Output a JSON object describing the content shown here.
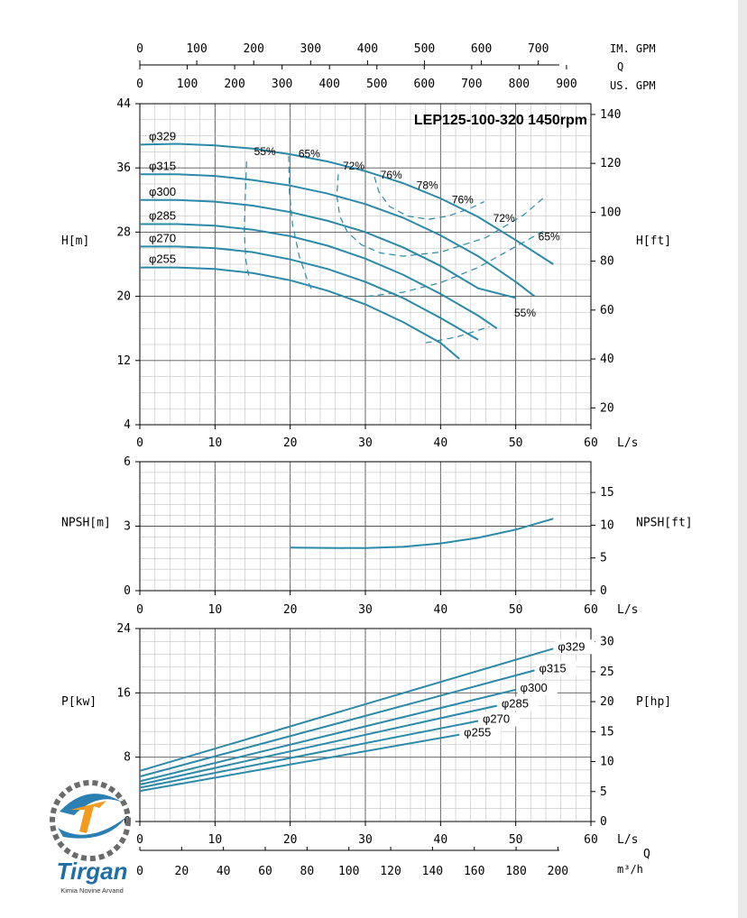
{
  "title": "LEP125-100-320 1450rpm",
  "top_axes": {
    "im_gpm": {
      "label": "IM. GPM",
      "ticks": [
        0,
        100,
        200,
        300,
        400,
        500,
        600,
        700
      ]
    },
    "q_label": "Q",
    "us_gpm": {
      "label": "US. GPM",
      "ticks": [
        0,
        100,
        200,
        300,
        400,
        500,
        600,
        700,
        800,
        900
      ]
    }
  },
  "logo": {
    "brand": "Tirgan",
    "tagline": "Kimia Novine Arvand",
    "colors": [
      "#2b7fb3",
      "#f39a1f",
      "#e84e1b"
    ]
  },
  "colors": {
    "curve": "#2a8aa8",
    "grid": "#999999",
    "axis": "#000000",
    "background": "#ffffff",
    "page": "#e9e9e9"
  },
  "chart_data": [
    {
      "type": "line",
      "title": "LEP125-100-320 1450rpm",
      "xlabel": "L/s",
      "ylabel": "H[m]",
      "y2label": "H[ft]",
      "xlim": [
        0,
        60
      ],
      "ylim": [
        4,
        44
      ],
      "y2lim": [
        13.1,
        144.4
      ],
      "xticks": [
        0,
        10,
        20,
        30,
        40,
        50,
        60
      ],
      "yticks": [
        4,
        12,
        20,
        28,
        36,
        44
      ],
      "y2ticks": [
        20,
        40,
        60,
        80,
        100,
        120,
        140
      ],
      "grid": true,
      "series": [
        {
          "name": "φ329",
          "x": [
            0,
            5,
            10,
            15,
            20,
            25,
            30,
            35,
            40,
            45,
            50,
            55
          ],
          "y": [
            38.9,
            39.0,
            38.8,
            38.4,
            37.7,
            36.8,
            35.6,
            34.1,
            32.2,
            29.9,
            27.0,
            24.0
          ]
        },
        {
          "name": "φ315",
          "x": [
            0,
            5,
            10,
            15,
            20,
            25,
            30,
            35,
            40,
            45,
            50,
            52.5
          ],
          "y": [
            35.2,
            35.2,
            35.0,
            34.5,
            33.8,
            32.8,
            31.5,
            29.8,
            27.6,
            25.0,
            21.8,
            20.0
          ]
        },
        {
          "name": "φ300",
          "x": [
            0,
            5,
            10,
            15,
            20,
            25,
            30,
            35,
            40,
            45,
            50
          ],
          "y": [
            32.0,
            32.0,
            31.8,
            31.3,
            30.5,
            29.4,
            28.0,
            26.1,
            23.8,
            21.0,
            19.8
          ]
        },
        {
          "name": "φ285",
          "x": [
            0,
            5,
            10,
            15,
            20,
            25,
            30,
            35,
            40,
            45,
            47.5
          ],
          "y": [
            29.0,
            29.0,
            28.8,
            28.3,
            27.5,
            26.3,
            24.7,
            22.7,
            20.3,
            17.6,
            16.0
          ]
        },
        {
          "name": "φ270",
          "x": [
            0,
            5,
            10,
            15,
            20,
            25,
            30,
            35,
            40,
            45
          ],
          "y": [
            26.2,
            26.2,
            26.0,
            25.5,
            24.6,
            23.4,
            21.8,
            19.8,
            17.3,
            14.6
          ]
        },
        {
          "name": "φ255",
          "x": [
            0,
            5,
            10,
            15,
            20,
            25,
            30,
            35,
            40,
            42.5
          ],
          "y": [
            23.6,
            23.6,
            23.4,
            22.9,
            22.0,
            20.7,
            19.0,
            16.8,
            14.2,
            12.2
          ]
        }
      ],
      "efficiency": {
        "labels": [
          "55%",
          "65%",
          "72%",
          "76%",
          "78%",
          "76%",
          "72%",
          "65%",
          "55%"
        ],
        "contours": [
          {
            "x": [
              14.2,
              14.0,
              13.9,
              14.1,
              14.5
            ],
            "y": [
              36.8,
              32,
              28,
              24.5,
              22.5
            ]
          },
          {
            "x": [
              19.8,
              19.9,
              20.3,
              21.2,
              22.3,
              23
            ],
            "y": [
              37.5,
              33,
              29,
              25,
              22,
              20.5
            ]
          },
          {
            "x": [
              26.4,
              26.2,
              26.6,
              27.6,
              29.5,
              32,
              35,
              40,
              46,
              51,
              54
            ],
            "y": [
              35.2,
              32.5,
              30,
              28,
              26.4,
              25.4,
              25,
              25.5,
              27.3,
              30.1,
              32.5
            ]
          },
          {
            "x": [
              31.2,
              31.8,
              33.2,
              35.6,
              38.4,
              41,
              43.8,
              45.8
            ],
            "y": [
              34.9,
              33,
              31.2,
              30,
              29.6,
              30,
              30.9,
              31.8
            ]
          },
          {
            "x": [
              30.2,
              35,
              40,
              45,
              50,
              53.6
            ],
            "y": [
              20.0,
              20.5,
              21.7,
              23.6,
              26.2,
              28.1
            ]
          },
          {
            "x": [
              38,
              42,
              46.5
            ],
            "y": [
              14.2,
              14.9,
              16.2
            ]
          }
        ],
        "label_positions_data": [
          [
            15.2,
            37.6
          ],
          [
            21.1,
            37.3
          ],
          [
            27.0,
            35.8
          ],
          [
            32.0,
            34.7
          ],
          [
            36.8,
            33.4
          ],
          [
            41.5,
            31.6
          ],
          [
            47.0,
            29.3
          ],
          [
            53.0,
            27.0
          ],
          [
            49.8,
            17.5
          ]
        ]
      },
      "curve_labels": [
        "φ329",
        "φ315",
        "φ300",
        "φ285",
        "φ270",
        "φ255"
      ]
    },
    {
      "type": "line",
      "xlabel": "L/s",
      "ylabel": "NPSH[m]",
      "y2label": "NPSH[ft]",
      "xlim": [
        0,
        60
      ],
      "ylim": [
        0,
        6
      ],
      "y2lim": [
        0,
        19.7
      ],
      "xticks": [
        0,
        10,
        20,
        30,
        40,
        50,
        60
      ],
      "yticks": [
        0,
        3,
        6
      ],
      "y2ticks": [
        0,
        5,
        10,
        15
      ],
      "grid": true,
      "series": [
        {
          "x": [
            20,
            25,
            30,
            35,
            40,
            45,
            50,
            55
          ],
          "y": [
            2.0,
            1.99,
            1.98,
            2.04,
            2.2,
            2.46,
            2.84,
            3.35
          ]
        }
      ]
    },
    {
      "type": "line",
      "xlabel": "L/s",
      "ylabel": "P[kw]",
      "y2label": "P[hp]",
      "xlim": [
        0,
        60
      ],
      "ylim": [
        0,
        24
      ],
      "y2lim": [
        0,
        32.2
      ],
      "xticks": [
        0,
        10,
        20,
        30,
        40,
        50,
        60
      ],
      "yticks": [
        0,
        8,
        16,
        24
      ],
      "y2ticks": [
        0,
        5,
        10,
        15,
        20,
        25,
        30
      ],
      "grid": true,
      "series": [
        {
          "name": "φ329",
          "x": [
            0,
            55
          ],
          "y": [
            6.3,
            21.5
          ]
        },
        {
          "name": "φ315",
          "x": [
            0,
            52.5
          ],
          "y": [
            5.6,
            18.8
          ]
        },
        {
          "name": "φ300",
          "x": [
            0,
            50
          ],
          "y": [
            5.0,
            16.4
          ]
        },
        {
          "name": "φ285",
          "x": [
            0,
            47.5
          ],
          "y": [
            4.6,
            14.4
          ]
        },
        {
          "name": "φ270",
          "x": [
            0,
            45
          ],
          "y": [
            4.2,
            12.5
          ]
        },
        {
          "name": "φ255",
          "x": [
            0,
            42.5
          ],
          "y": [
            3.8,
            10.8
          ]
        }
      ],
      "bottom_axis": {
        "label": "m³/h",
        "q_label": "Q",
        "ticks": [
          0,
          20,
          40,
          60,
          80,
          100,
          120,
          140,
          160,
          180,
          200
        ]
      }
    }
  ]
}
